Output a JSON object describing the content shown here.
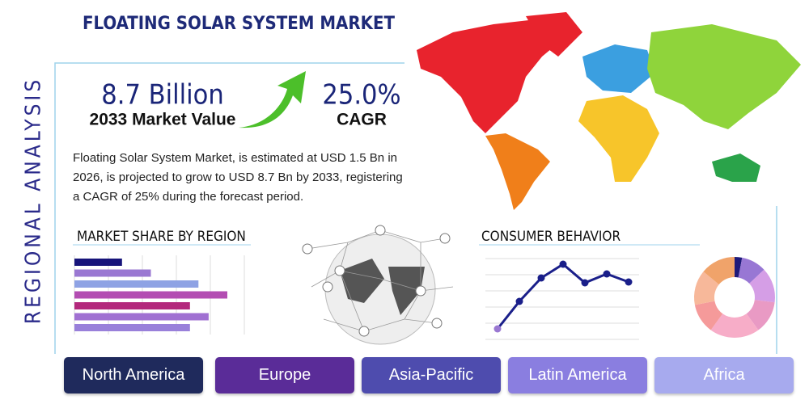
{
  "title": "FLOATING SOLAR SYSTEM MARKET",
  "side_label": "REGIONAL ANALYSIS",
  "stats": [
    {
      "value": "8.7 Billion",
      "label": "2033 Market Value"
    },
    {
      "value": "25.0%",
      "label": "CAGR"
    }
  ],
  "description": "Floating Solar System Market, is estimated at USD 1.5 Bn in 2026, is projected to grow to USD 8.7 Bn by 2033, registering a CAGR of 25% during the forecast period.",
  "market_share": {
    "type": "bar",
    "title": "MARKET SHARE BY REGION",
    "values": [
      28,
      45,
      73,
      90,
      68,
      79,
      68
    ],
    "colors": [
      "#17147a",
      "#9a78d2",
      "#8ea2e4",
      "#b34db2",
      "#b3287c",
      "#a070d2",
      "#9980da"
    ],
    "xlim": [
      0,
      100
    ],
    "xticks": [
      0,
      20,
      40,
      60,
      80,
      100
    ],
    "grid": true
  },
  "consumer_behavior": {
    "type": "line",
    "title": "CONSUMER BEHAVIOR",
    "values": [
      13,
      47,
      76,
      93,
      70,
      81,
      71
    ],
    "color": "#1a1f8a",
    "ylim": [
      0,
      100
    ],
    "yticks": [
      0,
      20,
      40,
      60,
      80,
      100
    ],
    "grid": true
  },
  "donut": {
    "type": "pie",
    "values": [
      3,
      10,
      14,
      13,
      20,
      12,
      14,
      14
    ],
    "colors": [
      "#1e1a7a",
      "#9877d4",
      "#d59ee6",
      "#e99ac4",
      "#f7adc8",
      "#f59a9a",
      "#f7b89a",
      "#f0a36a"
    ]
  },
  "tabs": [
    {
      "label": "North America",
      "color": "#1f2a5c"
    },
    {
      "label": "Europe",
      "color": "#5a2c98"
    },
    {
      "label": "Asia-Pacific",
      "color": "#4e4cae"
    },
    {
      "label": "Latin America",
      "color": "#8a7ee0"
    },
    {
      "label": "Africa",
      "color": "#a7aaee"
    }
  ]
}
